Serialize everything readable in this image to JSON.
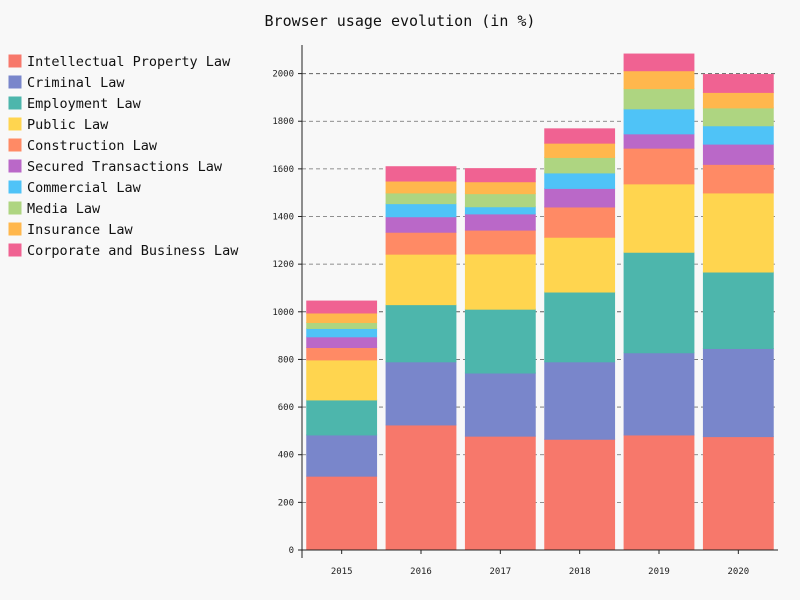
{
  "chart_data": {
    "type": "bar",
    "stacked": true,
    "title": "Browser usage evolution (in %)",
    "xlabel": "",
    "ylabel": "",
    "ylim": [
      0,
      2120
    ],
    "yticks": [
      0,
      200,
      400,
      600,
      800,
      1000,
      1200,
      1400,
      1600,
      1800,
      2000
    ],
    "major_yticks": [
      1000,
      2000
    ],
    "grid": true,
    "legend_position": "left",
    "categories": [
      "2015",
      "2016",
      "2017",
      "2018",
      "2019",
      "2020"
    ],
    "series": [
      {
        "name": "Intellectual Property Law",
        "color": "#f7786b",
        "values": [
          310,
          525,
          478,
          465,
          483,
          476
        ]
      },
      {
        "name": "Criminal Law",
        "color": "#7986cb",
        "values": [
          173,
          265,
          265,
          325,
          345,
          370
        ]
      },
      {
        "name": "Employment Law",
        "color": "#4db6ac",
        "values": [
          147,
          240,
          268,
          293,
          422,
          321
        ]
      },
      {
        "name": "Public Law",
        "color": "#ffd54f",
        "values": [
          168,
          212,
          232,
          230,
          287,
          332
        ]
      },
      {
        "name": "Construction Law",
        "color": "#ff8a65",
        "values": [
          52,
          92,
          100,
          127,
          150,
          120
        ]
      },
      {
        "name": "Secured Transactions Law",
        "color": "#ba68c8",
        "values": [
          45,
          65,
          68,
          78,
          60,
          85
        ]
      },
      {
        "name": "Commercial Law",
        "color": "#4fc3f7",
        "values": [
          35,
          55,
          30,
          65,
          105,
          77
        ]
      },
      {
        "name": "Media Law",
        "color": "#aed581",
        "values": [
          25,
          45,
          55,
          65,
          85,
          75
        ]
      },
      {
        "name": "Insurance Law",
        "color": "#ffb74d",
        "values": [
          40,
          50,
          50,
          60,
          75,
          65
        ]
      },
      {
        "name": "Corporate and Business Law",
        "color": "#f06292",
        "values": [
          50,
          60,
          55,
          60,
          70,
          75
        ]
      }
    ]
  }
}
